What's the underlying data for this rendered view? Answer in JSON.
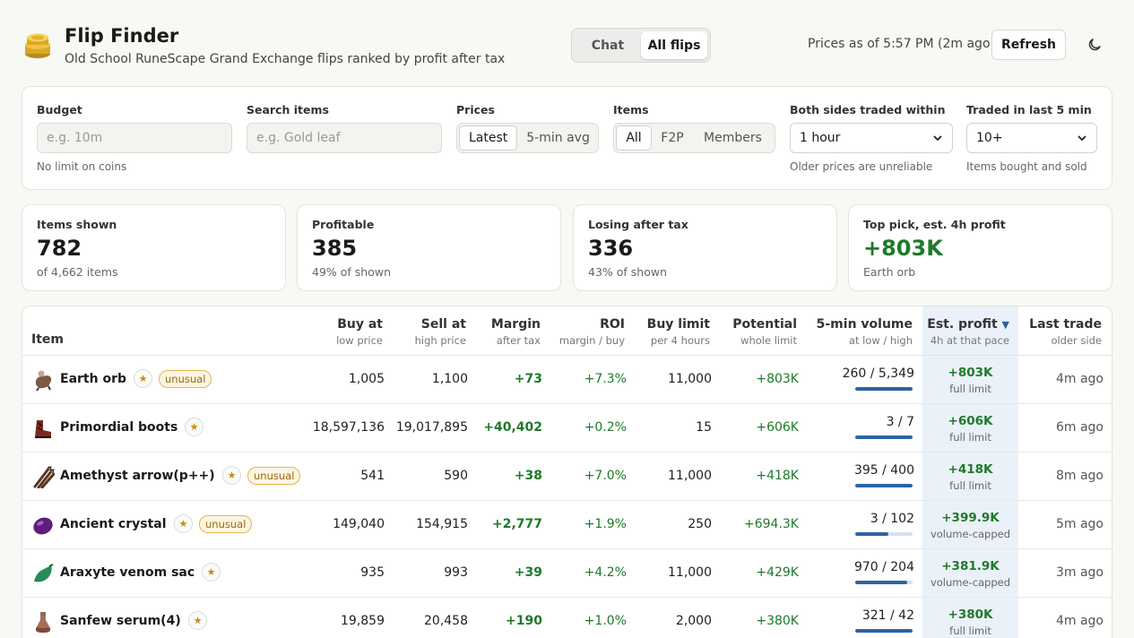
{
  "header": {
    "title": "Flip Finder",
    "subtitle": "Old School RuneScape Grand Exchange flips ranked by profit after tax",
    "modes": [
      "Chat",
      "All flips"
    ],
    "prices_as_of": "Prices as of 5:57 PM (2m ago)",
    "refresh_label": "Refresh",
    "logo_icon": "coins-icon",
    "theme_icon": "moon-icon"
  },
  "filters": {
    "budget": {
      "label": "Budget",
      "placeholder": "e.g. 10m",
      "help": "No limit on coins"
    },
    "search": {
      "label": "Search items",
      "placeholder": "e.g. Gold leaf"
    },
    "prices": {
      "label": "Prices",
      "options": [
        "Latest",
        "5-min avg"
      ],
      "selected": "Latest"
    },
    "items": {
      "label": "Items",
      "options": [
        "All",
        "F2P",
        "Members"
      ],
      "selected": "All"
    },
    "traded_within": {
      "label": "Both sides traded within",
      "value": "1 hour",
      "help": "Older prices are unreliable"
    },
    "traded_last": {
      "label": "Traded in last 5 min",
      "value": "10+",
      "help": "Items bought and sold"
    }
  },
  "stats": [
    {
      "label": "Items shown",
      "value": "782",
      "sub": "of 4,662 items"
    },
    {
      "label": "Profitable",
      "value": "385",
      "sub": "49% of shown"
    },
    {
      "label": "Losing after tax",
      "value": "336",
      "sub": "43% of shown"
    },
    {
      "label": "Top pick, est. 4h profit",
      "value": "+803K",
      "sub": "Earth orb"
    }
  ],
  "table": {
    "columns": {
      "item": "Item",
      "buy": {
        "title": "Buy at",
        "sub": "low price"
      },
      "sell": {
        "title": "Sell at",
        "sub": "high price"
      },
      "margin": {
        "title": "Margin",
        "sub": "after tax"
      },
      "roi": {
        "title": "ROI",
        "sub": "margin / buy"
      },
      "limit": {
        "title": "Buy limit",
        "sub": "per 4 hours"
      },
      "potential": {
        "title": "Potential",
        "sub": "whole limit"
      },
      "volume": {
        "title": "5-min volume",
        "sub": "at low / high"
      },
      "profit": {
        "title": "Est. profit",
        "arrow": "▼",
        "sub": "4h at that pace"
      },
      "last": {
        "title": "Last trade",
        "sub": "older side"
      }
    },
    "star_glyph": "★",
    "rows": [
      {
        "name": "Earth orb",
        "tag": "unusual",
        "buy": "1,005",
        "sell": "1,100",
        "margin": "+73",
        "roi": "+7.3%",
        "limit": "11,000",
        "potential": "+803K",
        "volume": "260 / 5,349",
        "volume_fill": 1.0,
        "profit": "+803K",
        "profit_note": "full limit",
        "last": "4m ago",
        "icon": "earth-orb-icon",
        "color": "#7a5a44"
      },
      {
        "name": "Primordial boots",
        "tag": "",
        "buy": "18,597,136",
        "sell": "19,017,895",
        "margin": "+40,402",
        "roi": "+0.2%",
        "limit": "15",
        "potential": "+606K",
        "volume": "3 / 7",
        "volume_fill": 1.0,
        "profit": "+606K",
        "profit_note": "full limit",
        "last": "6m ago",
        "icon": "boots-icon",
        "color": "#7a2a22"
      },
      {
        "name": "Amethyst arrow(p++)",
        "tag": "unusual",
        "buy": "541",
        "sell": "590",
        "margin": "+38",
        "roi": "+7.0%",
        "limit": "11,000",
        "potential": "+418K",
        "volume": "395 / 400",
        "volume_fill": 1.0,
        "profit": "+418K",
        "profit_note": "full limit",
        "last": "8m ago",
        "icon": "arrows-icon",
        "color": "#5a3520"
      },
      {
        "name": "Ancient crystal",
        "tag": "unusual",
        "buy": "149,040",
        "sell": "154,915",
        "margin": "+2,777",
        "roi": "+1.9%",
        "limit": "250",
        "potential": "+694.3K",
        "volume": "3 / 102",
        "volume_fill": 0.58,
        "profit": "+399.9K",
        "profit_note": "volume-capped",
        "last": "5m ago",
        "icon": "crystal-icon",
        "color": "#5c1e7a"
      },
      {
        "name": "Araxyte venom sac",
        "tag": "",
        "buy": "935",
        "sell": "993",
        "margin": "+39",
        "roi": "+4.2%",
        "limit": "11,000",
        "potential": "+429K",
        "volume": "970 / 204",
        "volume_fill": 0.9,
        "profit": "+381.9K",
        "profit_note": "volume-capped",
        "last": "3m ago",
        "icon": "venom-sac-icon",
        "color": "#2a8a5a"
      },
      {
        "name": "Sanfew serum(4)",
        "tag": "",
        "buy": "19,859",
        "sell": "20,458",
        "margin": "+190",
        "roi": "+1.0%",
        "limit": "2,000",
        "potential": "+380K",
        "volume": "321 / 42",
        "volume_fill": 1.0,
        "profit": "+380K",
        "profit_note": "full limit",
        "last": "4m ago",
        "icon": "potion-icon",
        "color": "#a57058"
      }
    ]
  }
}
